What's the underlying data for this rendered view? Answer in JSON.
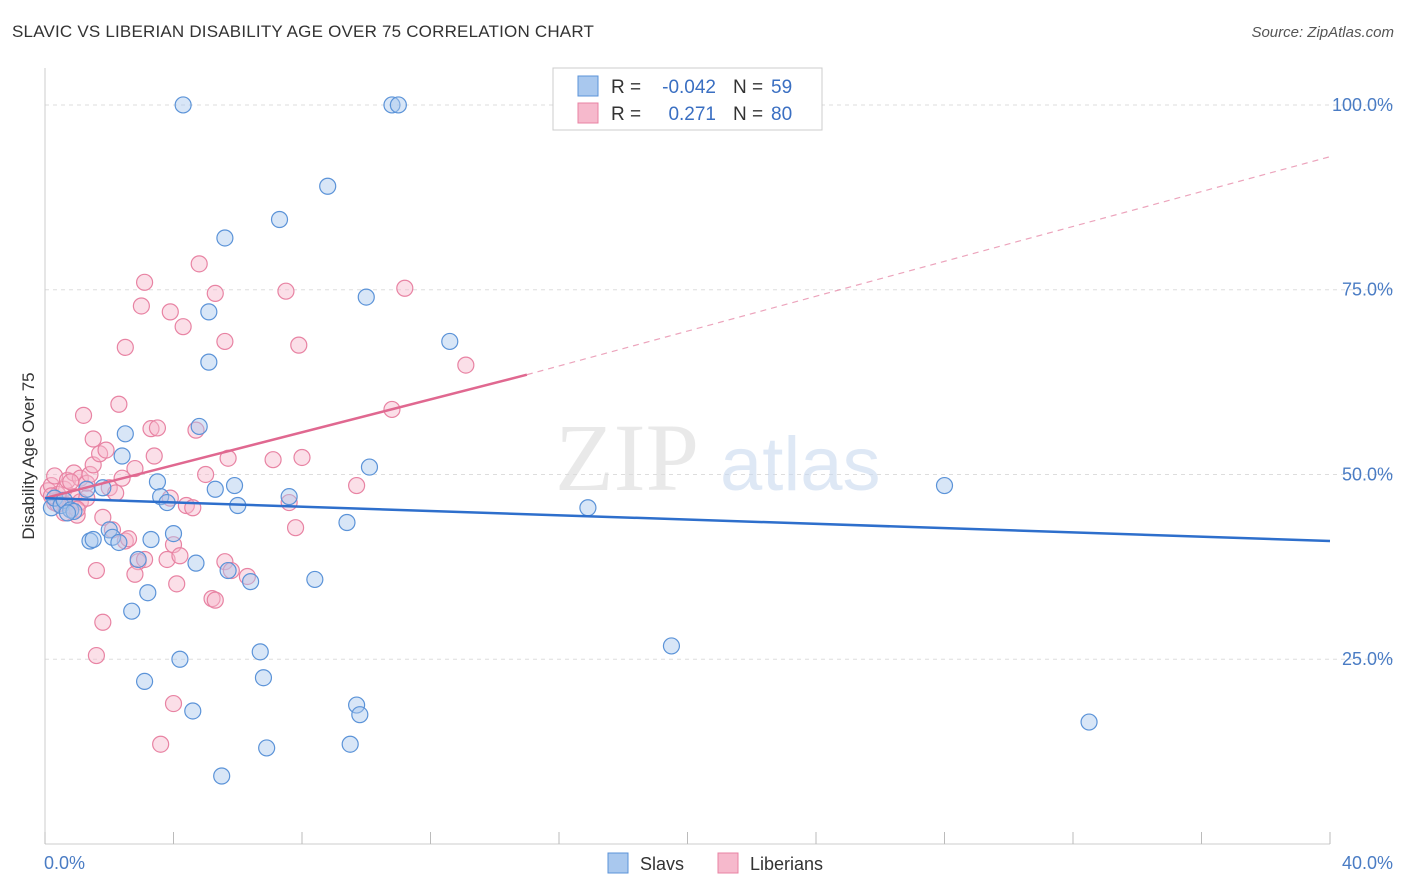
{
  "title": "SLAVIC VS LIBERIAN DISABILITY AGE OVER 75 CORRELATION CHART",
  "source": "Source: ZipAtlas.com",
  "watermark": {
    "zip": "ZIP",
    "atlas": "atlas"
  },
  "colors": {
    "slavs_fill": "#a9c8ee",
    "slavs_stroke": "#5b93d8",
    "slavs_line": "#2e6fcc",
    "liberians_fill": "#f6b9cc",
    "liberians_stroke": "#e883a3",
    "liberians_line": "#e06890",
    "tick_text": "#4a7cc4",
    "grid": "#dddddd"
  },
  "legend": {
    "r_label": "R =",
    "n_label": "N =",
    "slavs": {
      "r": "-0.042",
      "n": "59"
    },
    "liberians": {
      "r": "0.271",
      "n": "80"
    }
  },
  "chart_data": {
    "type": "scatter",
    "title": "SLAVIC VS LIBERIAN DISABILITY AGE OVER 75 CORRELATION CHART",
    "xlabel": "",
    "ylabel": "Disability Age Over 75",
    "xlim": [
      0,
      40
    ],
    "ylim": [
      0,
      105
    ],
    "x_tick_labels": [
      "0.0%",
      "40.0%"
    ],
    "y_ticks": [
      25,
      50,
      75,
      100
    ],
    "y_tick_labels": [
      "25.0%",
      "50.0%",
      "75.0%",
      "100.0%"
    ],
    "grid": "horizontal dashed",
    "legend_position": "top-center",
    "series": [
      {
        "name": "Slavs",
        "r": -0.042,
        "n": 59,
        "trend": {
          "x": [
            0,
            40
          ],
          "y": [
            46.8,
            41.0
          ]
        },
        "points": [
          [
            0.2,
            45.5
          ],
          [
            0.3,
            46.8
          ],
          [
            0.5,
            45.8
          ],
          [
            0.6,
            46.5
          ],
          [
            0.8,
            45.2
          ],
          [
            0.9,
            45.0
          ],
          [
            1.3,
            48.0
          ],
          [
            1.4,
            41.0
          ],
          [
            1.5,
            41.2
          ],
          [
            1.8,
            48.2
          ],
          [
            2.0,
            42.5
          ],
          [
            2.1,
            41.5
          ],
          [
            2.3,
            40.8
          ],
          [
            2.4,
            52.5
          ],
          [
            2.5,
            55.5
          ],
          [
            2.7,
            31.5
          ],
          [
            2.9,
            38.5
          ],
          [
            3.1,
            22.0
          ],
          [
            3.2,
            34.0
          ],
          [
            3.3,
            41.2
          ],
          [
            3.5,
            49.0
          ],
          [
            3.6,
            47.0
          ],
          [
            3.8,
            46.2
          ],
          [
            4.0,
            42.0
          ],
          [
            4.2,
            25.0
          ],
          [
            4.3,
            100.0
          ],
          [
            4.6,
            18.0
          ],
          [
            4.7,
            38.0
          ],
          [
            4.8,
            56.5
          ],
          [
            5.1,
            72.0
          ],
          [
            5.1,
            65.2
          ],
          [
            5.3,
            48.0
          ],
          [
            5.5,
            9.2
          ],
          [
            5.6,
            82.0
          ],
          [
            5.7,
            37.0
          ],
          [
            5.9,
            48.5
          ],
          [
            6.0,
            45.8
          ],
          [
            6.4,
            35.5
          ],
          [
            6.7,
            26.0
          ],
          [
            6.8,
            22.5
          ],
          [
            6.9,
            13.0
          ],
          [
            7.3,
            84.5
          ],
          [
            7.6,
            47.0
          ],
          [
            8.4,
            35.8
          ],
          [
            8.8,
            89.0
          ],
          [
            9.4,
            43.5
          ],
          [
            9.5,
            13.5
          ],
          [
            9.7,
            18.8
          ],
          [
            9.8,
            17.5
          ],
          [
            10.0,
            74.0
          ],
          [
            10.1,
            51.0
          ],
          [
            10.8,
            100.0
          ],
          [
            11.0,
            100.0
          ],
          [
            12.6,
            68.0
          ],
          [
            16.9,
            45.5
          ],
          [
            19.5,
            26.8
          ],
          [
            28.0,
            48.5
          ],
          [
            32.5,
            16.5
          ],
          [
            0.7,
            44.8
          ]
        ]
      },
      {
        "name": "Liberians",
        "r": 0.271,
        "n": 80,
        "trend": {
          "x": [
            0,
            15
          ],
          "y": [
            46.8,
            63.5
          ]
        },
        "trend_ext": {
          "x": [
            15,
            40
          ],
          "y": [
            63.5,
            93.0
          ]
        },
        "points": [
          [
            0.1,
            47.8
          ],
          [
            0.2,
            48.5
          ],
          [
            0.3,
            46.2
          ],
          [
            0.3,
            49.8
          ],
          [
            0.4,
            47.3
          ],
          [
            0.5,
            46.5
          ],
          [
            0.6,
            44.8
          ],
          [
            0.6,
            48.0
          ],
          [
            0.7,
            49.2
          ],
          [
            0.8,
            45.8
          ],
          [
            0.9,
            47.0
          ],
          [
            0.9,
            50.2
          ],
          [
            1.0,
            44.5
          ],
          [
            1.1,
            49.5
          ],
          [
            1.1,
            46.3
          ],
          [
            1.2,
            58.0
          ],
          [
            1.3,
            48.8
          ],
          [
            1.4,
            50.0
          ],
          [
            1.5,
            54.8
          ],
          [
            1.5,
            51.3
          ],
          [
            1.6,
            37.0
          ],
          [
            1.6,
            25.5
          ],
          [
            1.7,
            52.8
          ],
          [
            1.8,
            44.2
          ],
          [
            1.8,
            30.0
          ],
          [
            1.9,
            53.3
          ],
          [
            2.0,
            48.2
          ],
          [
            2.1,
            42.5
          ],
          [
            2.2,
            47.5
          ],
          [
            2.3,
            59.5
          ],
          [
            2.4,
            49.5
          ],
          [
            2.5,
            41.0
          ],
          [
            2.5,
            67.2
          ],
          [
            2.6,
            41.3
          ],
          [
            2.8,
            50.8
          ],
          [
            2.9,
            38.2
          ],
          [
            3.0,
            72.8
          ],
          [
            3.1,
            38.5
          ],
          [
            3.1,
            76.0
          ],
          [
            3.3,
            56.2
          ],
          [
            3.4,
            52.5
          ],
          [
            3.5,
            56.3
          ],
          [
            3.6,
            13.5
          ],
          [
            3.8,
            38.5
          ],
          [
            3.9,
            46.8
          ],
          [
            3.9,
            72.0
          ],
          [
            4.0,
            40.5
          ],
          [
            4.0,
            19.0
          ],
          [
            4.1,
            35.2
          ],
          [
            4.2,
            39.0
          ],
          [
            4.3,
            70.0
          ],
          [
            4.4,
            45.8
          ],
          [
            4.6,
            45.5
          ],
          [
            4.7,
            56.0
          ],
          [
            4.8,
            78.5
          ],
          [
            5.0,
            50.0
          ],
          [
            5.2,
            33.2
          ],
          [
            5.3,
            74.5
          ],
          [
            5.3,
            33.0
          ],
          [
            5.6,
            38.2
          ],
          [
            5.6,
            68.0
          ],
          [
            5.7,
            52.2
          ],
          [
            5.8,
            37.0
          ],
          [
            6.3,
            36.2
          ],
          [
            7.1,
            52.0
          ],
          [
            7.5,
            74.8
          ],
          [
            7.6,
            46.2
          ],
          [
            7.8,
            42.8
          ],
          [
            7.9,
            67.5
          ],
          [
            8.0,
            52.3
          ],
          [
            9.7,
            48.5
          ],
          [
            10.8,
            58.8
          ],
          [
            11.2,
            75.2
          ],
          [
            13.1,
            64.8
          ],
          [
            0.4,
            46.0
          ],
          [
            0.8,
            49.0
          ],
          [
            1.3,
            46.8
          ],
          [
            0.2,
            47.1
          ],
          [
            2.8,
            36.5
          ],
          [
            1.0,
            45.3
          ]
        ]
      }
    ]
  },
  "bottom_legend": {
    "slavs": "Slavs",
    "liberians": "Liberians"
  }
}
